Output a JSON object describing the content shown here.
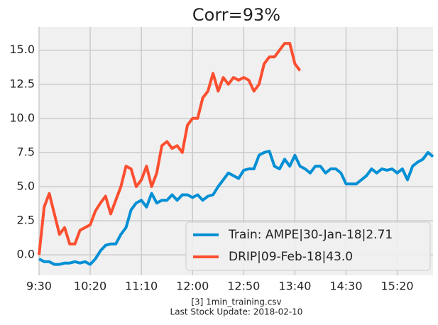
{
  "chart_data": {
    "type": "line",
    "title": "Corr=93%",
    "categories": [
      "9:30",
      "9:35",
      "9:40",
      "9:45",
      "9:50",
      "9:55",
      "10:00",
      "10:05",
      "10:10",
      "10:15",
      "10:20",
      "10:25",
      "10:30",
      "10:35",
      "10:40",
      "10:45",
      "10:50",
      "10:55",
      "11:00",
      "11:05",
      "11:10",
      "11:15",
      "11:20",
      "11:25",
      "11:30",
      "11:35",
      "11:40",
      "11:45",
      "11:50",
      "11:55",
      "12:00",
      "12:05",
      "12:10",
      "12:15",
      "12:20",
      "12:25",
      "12:30",
      "12:35",
      "12:40",
      "12:45",
      "12:50",
      "12:55",
      "13:00",
      "13:05",
      "13:10",
      "13:15",
      "13:20",
      "13:25",
      "13:30",
      "13:35",
      "13:40",
      "13:45",
      "13:50",
      "13:55",
      "14:00",
      "14:05",
      "14:10",
      "14:15",
      "14:20",
      "14:25",
      "14:30",
      "14:35",
      "14:40",
      "14:45",
      "14:50",
      "14:55",
      "15:00",
      "15:05",
      "15:10",
      "15:15",
      "15:20",
      "15:25",
      "15:30",
      "15:35",
      "15:40",
      "15:45",
      "15:50",
      "15:55"
    ],
    "series": [
      {
        "name": "Train: AMPE|30-Jan-18|2.71",
        "color": "#008fd5",
        "values": [
          -0.3,
          -0.5,
          -0.5,
          -0.7,
          -0.7,
          -0.6,
          -0.6,
          -0.5,
          -0.6,
          -0.5,
          -0.7,
          -0.3,
          0.3,
          0.7,
          0.8,
          0.8,
          1.5,
          2.0,
          3.3,
          3.8,
          4.0,
          3.5,
          4.5,
          3.8,
          4.0,
          4.0,
          4.4,
          4.0,
          4.4,
          4.4,
          4.2,
          4.4,
          4.0,
          4.3,
          4.4,
          5.0,
          5.5,
          6.0,
          5.8,
          5.6,
          6.2,
          6.3,
          6.3,
          7.3,
          7.5,
          7.6,
          6.5,
          6.3,
          7.0,
          6.5,
          7.3,
          6.5,
          6.3,
          6.0,
          6.5,
          6.5,
          6.0,
          6.3,
          6.3,
          6.0,
          5.2,
          5.2,
          5.2,
          5.5,
          5.8,
          6.3,
          6.0,
          6.3,
          6.2,
          6.3,
          6.0,
          6.3,
          5.5,
          6.5,
          6.8,
          7.0,
          7.5,
          7.2
        ]
      },
      {
        "name": "DRIP|09-Feb-18|43.0",
        "color": "#fc4f30",
        "values": [
          0.0,
          3.5,
          4.5,
          3.0,
          1.5,
          2.0,
          0.8,
          0.8,
          1.8,
          2.0,
          2.2,
          3.2,
          3.8,
          4.3,
          3.0,
          4.0,
          5.0,
          6.5,
          6.3,
          5.0,
          5.5,
          6.5,
          5.0,
          6.0,
          8.0,
          8.3,
          7.8,
          8.0,
          7.5,
          9.5,
          10.0,
          10.0,
          11.5,
          12.0,
          13.3,
          12.0,
          13.0,
          12.5,
          13.0,
          12.8,
          13.0,
          12.8,
          12.0,
          12.5,
          14.0,
          14.5,
          14.5,
          15.0,
          15.5,
          15.5,
          14.0,
          13.5,
          null,
          null,
          null,
          null,
          null,
          null,
          null,
          null,
          null,
          null,
          null,
          null,
          null,
          null,
          null,
          null,
          null,
          null,
          null,
          null,
          null,
          null,
          null,
          null,
          null,
          null
        ]
      }
    ],
    "xticks": [
      "9:30",
      "10:20",
      "11:10",
      "12:00",
      "12:50",
      "13:40",
      "14:30",
      "15:20"
    ],
    "ylim": [
      -1.5,
      16.7
    ],
    "yticks": [
      {
        "value": 0,
        "label": "0.0"
      },
      2.5,
      {
        "value": 5,
        "label": "5.0"
      },
      7.5,
      {
        "value": 10,
        "label": "10.0"
      },
      12.5,
      {
        "value": 15,
        "label": "15.0"
      }
    ],
    "grid": true,
    "legend": "lower right",
    "footer": [
      "[3] 1min_training.csv",
      "Last Stock Update: 2018-02-10"
    ]
  }
}
